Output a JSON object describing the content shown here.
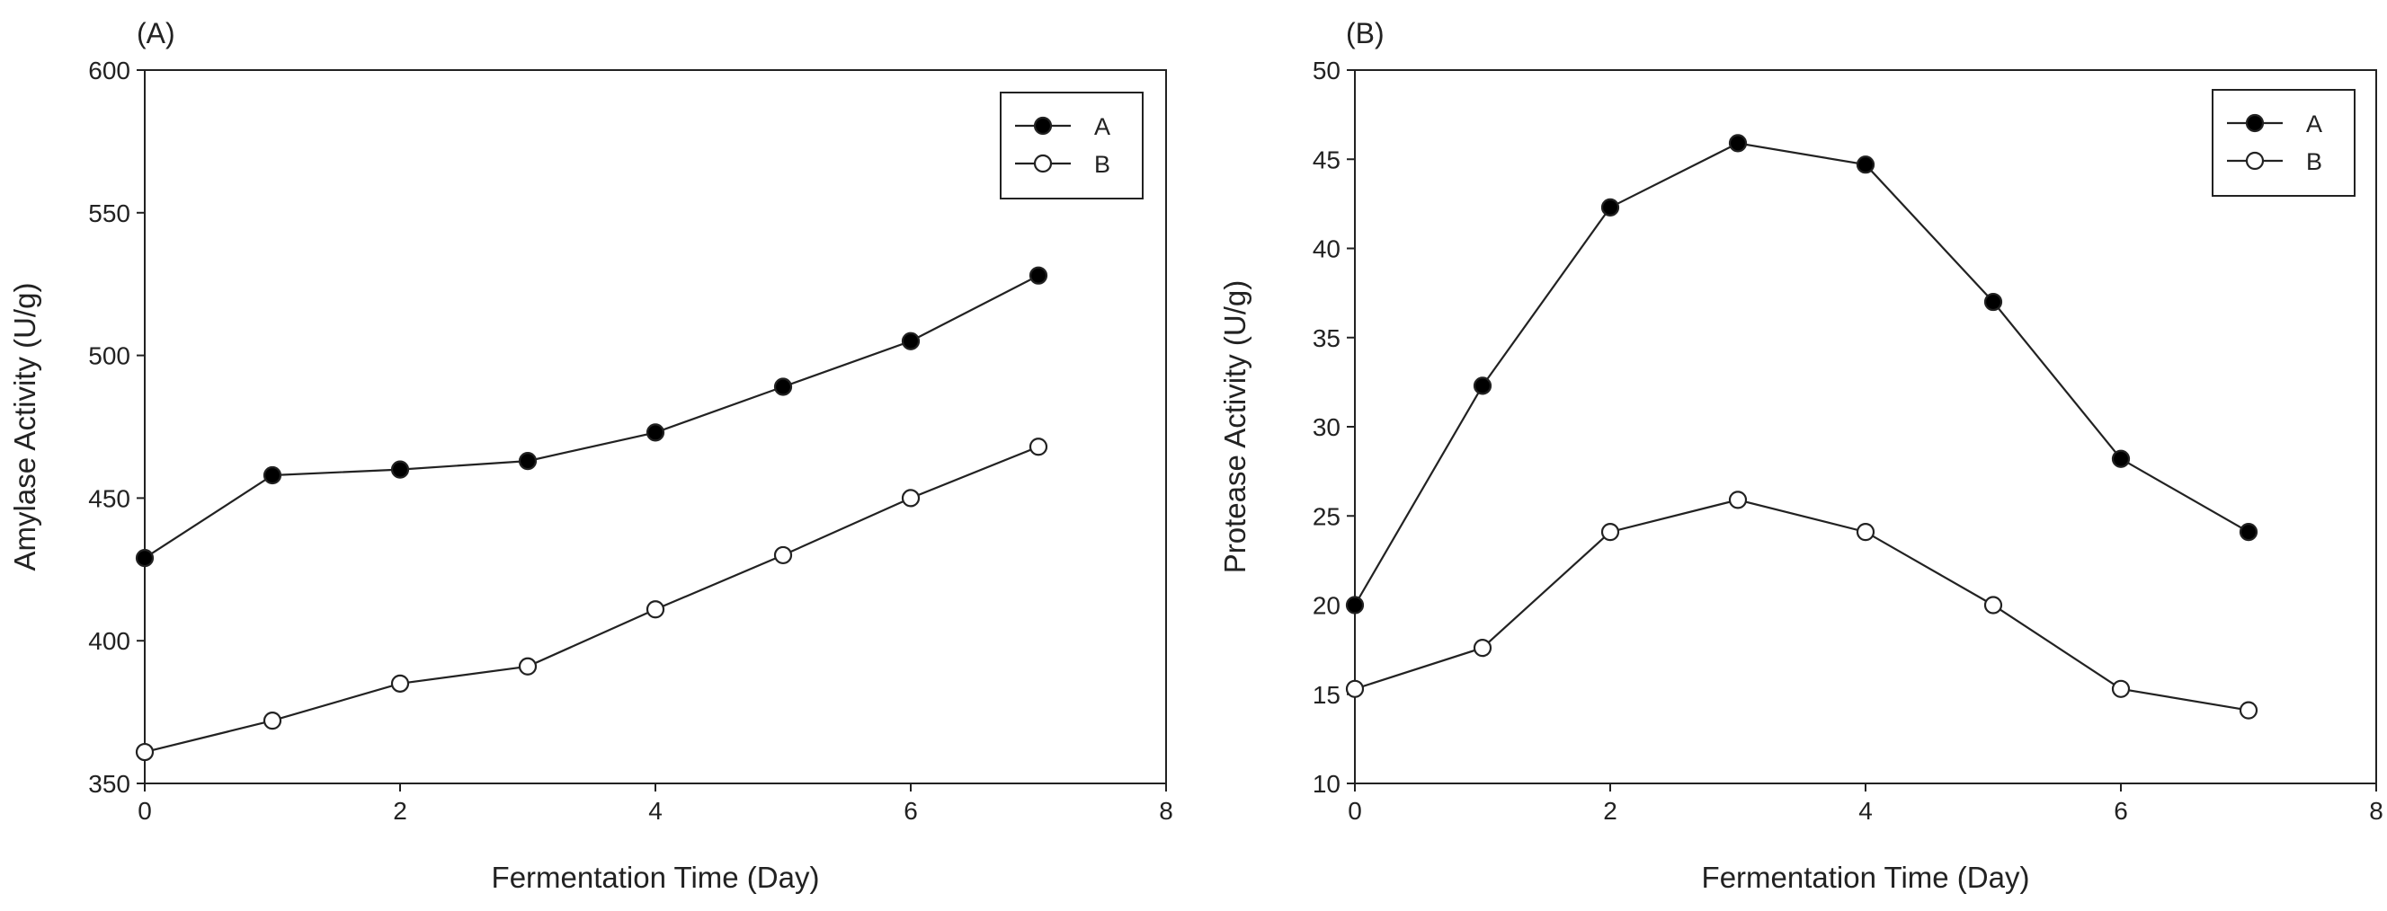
{
  "chart_data": [
    {
      "type": "line",
      "panel_label": "(A)",
      "title": "",
      "xlabel": "Fermentation Time (Day)",
      "ylabel": "Amylase Activity (U/g)",
      "xlim": [
        0,
        8
      ],
      "ylim": [
        350,
        600
      ],
      "xticks": [
        0,
        2,
        4,
        6,
        8
      ],
      "yticks": [
        350,
        400,
        450,
        500,
        550,
        600
      ],
      "grid": false,
      "legend_position": "top-right",
      "x": [
        0,
        1,
        2,
        3,
        4,
        5,
        6,
        7
      ],
      "series": [
        {
          "name": "A",
          "marker": "filled-circle",
          "values": [
            429,
            458,
            460,
            463,
            473,
            489,
            505,
            528
          ]
        },
        {
          "name": "B",
          "marker": "open-circle",
          "values": [
            361,
            372,
            385,
            391,
            411,
            430,
            450,
            468
          ]
        }
      ]
    },
    {
      "type": "line",
      "panel_label": "(B)",
      "title": "",
      "xlabel": "Fermentation Time (Day)",
      "ylabel": "Protease Activity (U/g)",
      "xlim": [
        0,
        8
      ],
      "ylim": [
        10,
        50
      ],
      "xticks": [
        0,
        2,
        4,
        6,
        8
      ],
      "yticks": [
        10,
        15,
        20,
        25,
        30,
        35,
        40,
        45,
        50
      ],
      "grid": false,
      "legend_position": "top-right",
      "x": [
        0,
        1,
        2,
        3,
        4,
        5,
        6,
        7
      ],
      "series": [
        {
          "name": "A",
          "marker": "filled-circle",
          "values": [
            20.0,
            32.3,
            42.3,
            45.9,
            44.7,
            37.0,
            28.2,
            24.1
          ]
        },
        {
          "name": "B",
          "marker": "open-circle",
          "values": [
            15.3,
            17.6,
            24.1,
            25.9,
            24.1,
            20.0,
            15.3,
            14.1
          ]
        }
      ]
    }
  ],
  "colors": {
    "line": "#222222",
    "marker_fill": "#000000",
    "open_marker_fill": "#ffffff"
  }
}
